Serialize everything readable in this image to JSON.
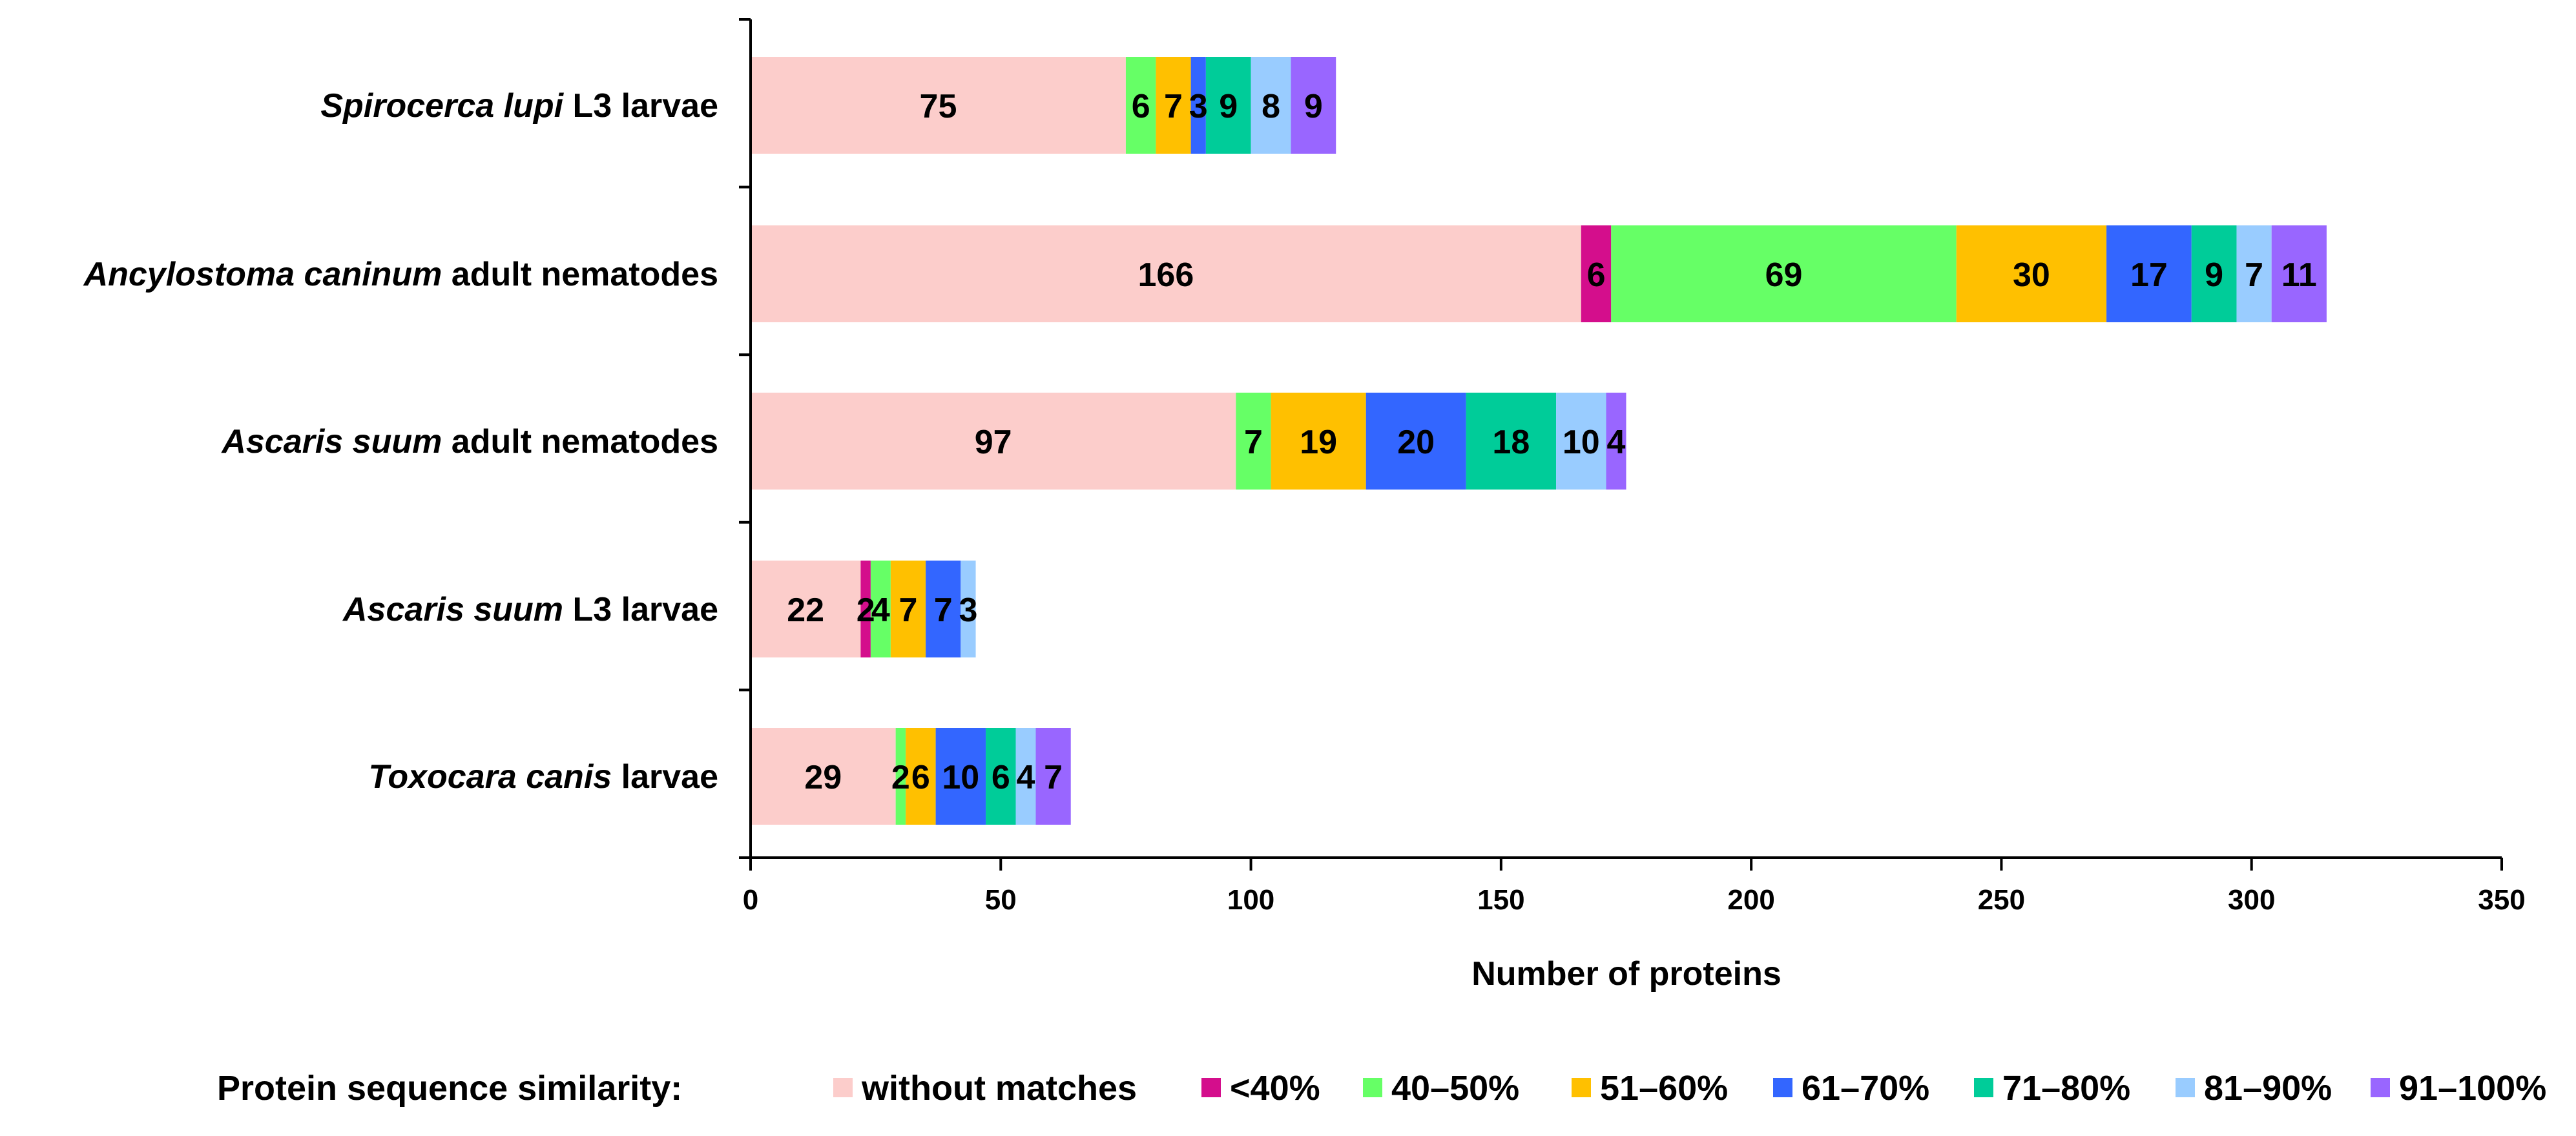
{
  "chart_data": {
    "type": "bar",
    "orientation": "horizontal",
    "stacked": true,
    "xlabel": "Number of proteins",
    "xlim": [
      0,
      350
    ],
    "xticks": [
      0,
      50,
      100,
      150,
      200,
      250,
      300,
      350
    ],
    "categories": [
      {
        "italic": "Spirocerca lupi",
        "rest": " L3 larvae"
      },
      {
        "italic": "Ancylostoma caninum",
        "rest": " adult nematodes"
      },
      {
        "italic": "Ascaris suum",
        "rest": " adult nematodes"
      },
      {
        "italic": "Ascaris suum",
        "rest": " L3 larvae"
      },
      {
        "italic": "Toxocara canis",
        "rest": " larvae"
      }
    ],
    "series": [
      {
        "name": "without matches",
        "color": "#FCCDCB",
        "values": [
          75,
          166,
          97,
          22,
          29
        ]
      },
      {
        "name": "<40%",
        "color": "#D40E8C",
        "values": [
          0,
          6,
          0,
          2,
          0
        ]
      },
      {
        "name": "40–50%",
        "color": "#66FF66",
        "values": [
          6,
          69,
          7,
          4,
          2
        ]
      },
      {
        "name": "51–60%",
        "color": "#FFC000",
        "values": [
          7,
          30,
          19,
          7,
          6
        ]
      },
      {
        "name": "61–70%",
        "color": "#3366FF",
        "values": [
          3,
          17,
          20,
          7,
          10
        ]
      },
      {
        "name": "71–80%",
        "color": "#00CC99",
        "values": [
          9,
          9,
          18,
          0,
          6
        ]
      },
      {
        "name": "81–90%",
        "color": "#99CCFF",
        "values": [
          8,
          7,
          10,
          3,
          4
        ]
      },
      {
        "name": "91–100%",
        "color": "#9966FF",
        "values": [
          9,
          11,
          4,
          0,
          7
        ]
      }
    ],
    "legend": {
      "title": "Protein sequence similarity:",
      "placement": "bottom"
    }
  }
}
